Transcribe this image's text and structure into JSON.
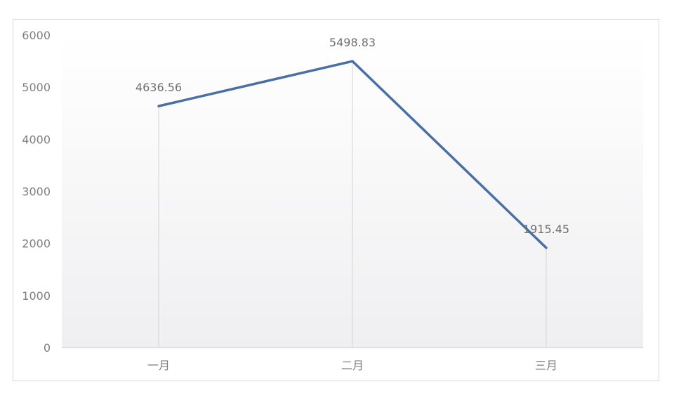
{
  "chart_data": {
    "type": "line",
    "title": "",
    "xlabel": "",
    "ylabel": "",
    "categories": [
      "一月",
      "二月",
      "三月"
    ],
    "series": [
      {
        "values": [
          4636.56,
          5498.83,
          1915.45
        ],
        "color": "#4a6fa5"
      }
    ],
    "data_labels": [
      "4636.56",
      "5498.83",
      "1915.45"
    ],
    "ylim": [
      0,
      6000
    ],
    "yticks": [
      0,
      1000,
      2000,
      3000,
      4000,
      5000,
      6000
    ],
    "grid": false,
    "drop_lines": true,
    "legend": "none",
    "plot_background": "#f2f2f4"
  }
}
